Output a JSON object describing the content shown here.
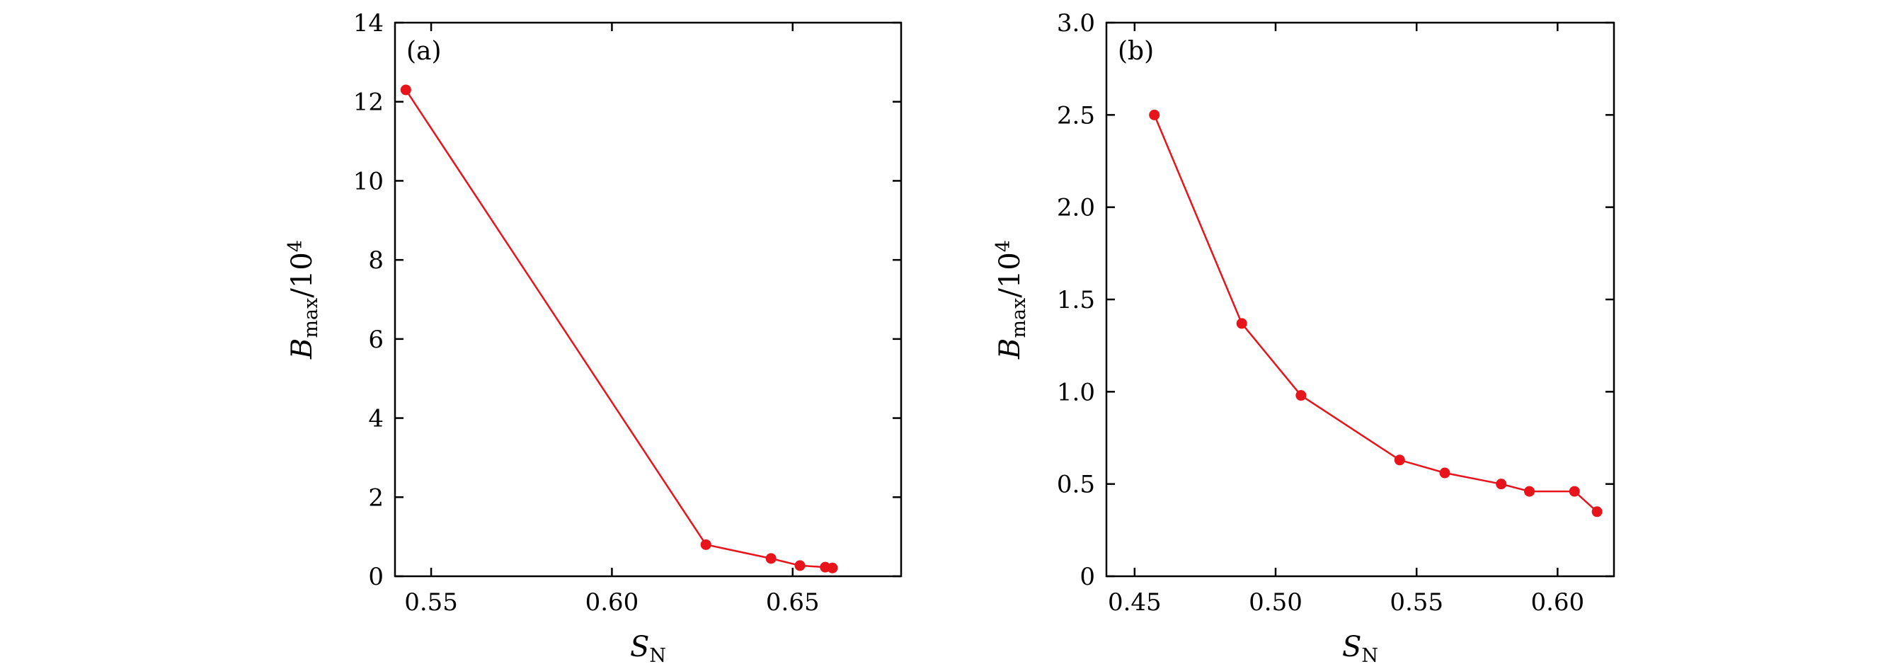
{
  "chart_data": [
    {
      "type": "line",
      "panel_label": "(a)",
      "x": [
        0.543,
        0.626,
        0.644,
        0.652,
        0.659,
        0.661
      ],
      "y": [
        12.3,
        0.8,
        0.45,
        0.27,
        0.23,
        0.21
      ],
      "xlim": [
        0.54,
        0.68
      ],
      "ylim": [
        0,
        14
      ],
      "xticks": [
        0.55,
        0.6,
        0.65
      ],
      "xtick_labels": [
        "0.55",
        "0.60",
        "0.65"
      ],
      "yticks": [
        0,
        2,
        4,
        6,
        8,
        10,
        12,
        14
      ],
      "ytick_labels": [
        "0",
        "2",
        "4",
        "6",
        "8",
        "10",
        "12",
        "14"
      ],
      "xlabel": {
        "main": "S",
        "sub": "N"
      },
      "ylabel": {
        "main": "B",
        "sub": "max",
        "rest": "/10",
        "sup": "4"
      },
      "grid": false,
      "markers": true
    },
    {
      "type": "line",
      "panel_label": "(b)",
      "x": [
        0.457,
        0.488,
        0.509,
        0.544,
        0.56,
        0.58,
        0.59,
        0.606,
        0.614
      ],
      "y": [
        2.5,
        1.37,
        0.98,
        0.63,
        0.56,
        0.5,
        0.46,
        0.46,
        0.35
      ],
      "xlim": [
        0.44,
        0.62
      ],
      "ylim": [
        0,
        3.0
      ],
      "xticks": [
        0.45,
        0.5,
        0.55,
        0.6
      ],
      "xtick_labels": [
        "0.45",
        "0.50",
        "0.55",
        "0.60"
      ],
      "yticks": [
        0,
        0.5,
        1.0,
        1.5,
        2.0,
        2.5,
        3.0
      ],
      "ytick_labels": [
        "0",
        "0.5",
        "1.0",
        "1.5",
        "2.0",
        "2.5",
        "3.0"
      ],
      "xlabel": {
        "main": "S",
        "sub": "N"
      },
      "ylabel": {
        "main": "B",
        "sub": "max",
        "rest": "/10",
        "sup": "4"
      },
      "grid": false,
      "markers": true
    }
  ],
  "colors": {
    "series": "#e8141b",
    "axes": "#000000"
  }
}
